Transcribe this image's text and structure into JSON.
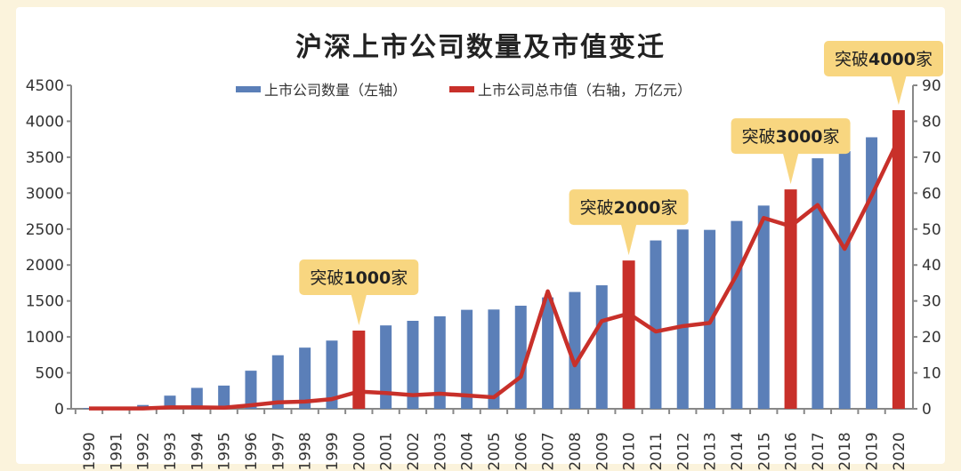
{
  "chart_data": {
    "type": "bar+line",
    "title": "沪深上市公司数量及市值变迁",
    "categories": [
      "1990",
      "1991",
      "1992",
      "1993",
      "1994",
      "1995",
      "1996",
      "1997",
      "1998",
      "1999",
      "2000",
      "2001",
      "2002",
      "2003",
      "2004",
      "2005",
      "2006",
      "2007",
      "2008",
      "2009",
      "2010",
      "2011",
      "2012",
      "2013",
      "2014",
      "2015",
      "2016",
      "2017",
      "2018",
      "2019",
      "2020"
    ],
    "series": [
      {
        "name": "上市公司数量（左轴）",
        "type": "bar",
        "axis": "left",
        "color": "#5b7fb8",
        "values": [
          10,
          14,
          53,
          183,
          291,
          323,
          530,
          745,
          851,
          949,
          1088,
          1160,
          1224,
          1287,
          1377,
          1381,
          1434,
          1550,
          1625,
          1718,
          2063,
          2342,
          2494,
          2489,
          2613,
          2827,
          3052,
          3485,
          3584,
          3777,
          4154
        ]
      },
      {
        "name": "上市公司总市值（右轴，万亿元）",
        "type": "line",
        "axis": "right",
        "color": "#c8302a",
        "values": [
          0.1,
          0.1,
          0.1,
          0.4,
          0.4,
          0.3,
          1.0,
          1.8,
          2.0,
          2.7,
          4.8,
          4.4,
          3.8,
          4.2,
          3.7,
          3.2,
          8.9,
          32.7,
          12.1,
          24.4,
          26.5,
          21.5,
          23.0,
          23.9,
          37.3,
          53.1,
          50.8,
          56.7,
          44.5,
          59.3,
          75.0
        ]
      }
    ],
    "highlight_bar_color": "#c8302a",
    "highlights": [
      {
        "category": "2000",
        "label_prefix": "突破",
        "label_num": "1000",
        "label_suffix": "家"
      },
      {
        "category": "2010",
        "label_prefix": "突破",
        "label_num": "2000",
        "label_suffix": "家"
      },
      {
        "category": "2016",
        "label_prefix": "突破",
        "label_num": "3000",
        "label_suffix": "家"
      },
      {
        "category": "2020",
        "label_prefix": "突破",
        "label_num": "4000",
        "label_suffix": "家"
      }
    ],
    "y_left": {
      "lim": [
        0,
        4500
      ],
      "ticks": [
        0,
        500,
        1000,
        1500,
        2000,
        2500,
        3000,
        3500,
        4000,
        4500
      ]
    },
    "y_right": {
      "lim": [
        0,
        90
      ],
      "ticks": [
        0,
        10,
        20,
        30,
        40,
        50,
        60,
        70,
        80,
        90
      ]
    },
    "grid": false,
    "legend": "top-center"
  }
}
